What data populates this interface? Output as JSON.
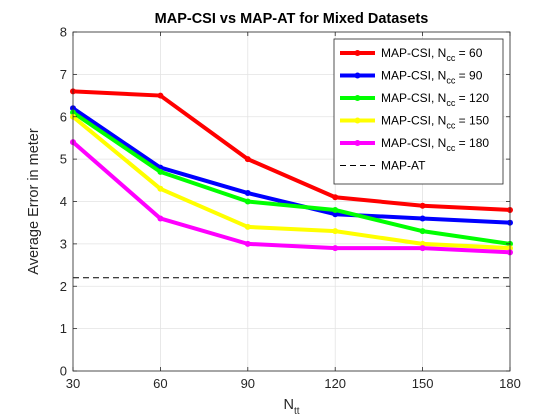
{
  "chart_data": {
    "type": "line",
    "title": "MAP-CSI vs MAP-AT for Mixed Datasets",
    "xlabel": "N",
    "xlabel_sub": "tt",
    "ylabel": "Average Error in meter",
    "x": [
      30,
      60,
      90,
      120,
      150,
      180
    ],
    "xlim": [
      30,
      180
    ],
    "ylim": [
      0,
      8
    ],
    "xticks": [
      "30",
      "60",
      "90",
      "120",
      "150",
      "180"
    ],
    "yticks": [
      "0",
      "1",
      "2",
      "3",
      "4",
      "5",
      "6",
      "7",
      "8"
    ],
    "grid": true,
    "legend_position": "top-right",
    "series": [
      {
        "label_main": "MAP-CSI, N",
        "label_sub": "cc",
        "label_tail": " = 60",
        "color": "#ff0000",
        "values": [
          6.6,
          6.5,
          5.0,
          4.1,
          3.9,
          3.8
        ]
      },
      {
        "label_main": "MAP-CSI, N",
        "label_sub": "cc",
        "label_tail": " = 90",
        "color": "#0000ff",
        "values": [
          6.2,
          4.8,
          4.2,
          3.7,
          3.6,
          3.5
        ]
      },
      {
        "label_main": "MAP-CSI, N",
        "label_sub": "cc",
        "label_tail": " = 120",
        "color": "#00ff00",
        "values": [
          6.1,
          4.7,
          4.0,
          3.8,
          3.3,
          3.0
        ]
      },
      {
        "label_main": "MAP-CSI, N",
        "label_sub": "cc",
        "label_tail": " = 150",
        "color": "#ffff00",
        "values": [
          6.0,
          4.3,
          3.4,
          3.3,
          3.0,
          2.9
        ]
      },
      {
        "label_main": "MAP-CSI, N",
        "label_sub": "cc",
        "label_tail": " = 180",
        "color": "#ff00ff",
        "values": [
          5.4,
          3.6,
          3.0,
          2.9,
          2.9,
          2.8
        ]
      }
    ],
    "reference_line": {
      "label": "MAP-AT",
      "value": 2.2,
      "color": "#000000",
      "style": "dashed"
    }
  }
}
